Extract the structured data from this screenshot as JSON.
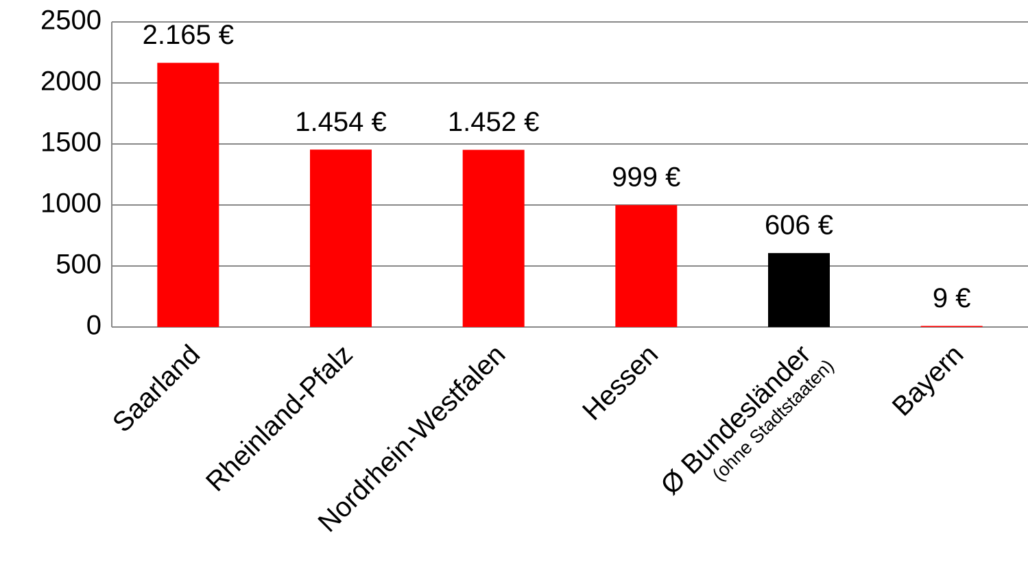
{
  "chart_data": {
    "type": "bar",
    "categories": [
      "Saarland",
      "Rheinland-Pfalz",
      "Nordrhein-Westfalen",
      "Hessen",
      "Ø Bundesländer",
      "Bayern"
    ],
    "category_sublabels": [
      null,
      null,
      null,
      null,
      "(ohne Stadtstaaten)",
      null
    ],
    "values": [
      2165,
      1454,
      1452,
      999,
      606,
      9
    ],
    "value_labels": [
      "2.165 €",
      "1.454 €",
      "1.452 €",
      "999 €",
      "606 €",
      "9 €"
    ],
    "colors": [
      "#ff0000",
      "#ff0000",
      "#ff0000",
      "#ff0000",
      "#000000",
      "#ff0000"
    ],
    "ylim": [
      0,
      2500
    ],
    "yticks": [
      0,
      500,
      1000,
      1500,
      2000,
      2500
    ],
    "grid": true
  }
}
